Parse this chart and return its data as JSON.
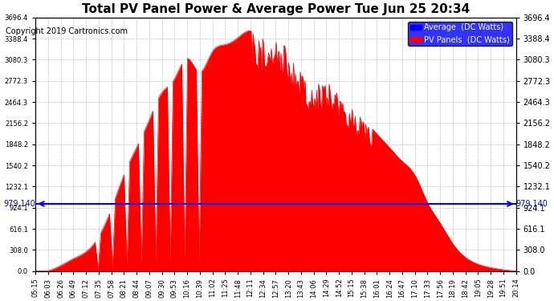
{
  "title": "Total PV Panel Power & Average Power Tue Jun 25 20:34",
  "copyright": "Copyright 2019 Cartronics.com",
  "avg_line_y": 979.14,
  "avg_line_label": "979.140",
  "y_min": 0.0,
  "y_max": 3696.4,
  "y_ticks": [
    0.0,
    308.0,
    616.1,
    924.1,
    1232.1,
    1540.2,
    1848.2,
    2156.2,
    2464.3,
    2772.3,
    3080.3,
    3388.4,
    3696.4
  ],
  "fill_color": "#FF0000",
  "line_color": "#FF0000",
  "avg_color": "#0000FF",
  "background_color": "#FFFFFF",
  "grid_color": "#AAAAAA",
  "legend_avg_label": "Average  (DC Watts)",
  "legend_pv_label": "PV Panels  (DC Watts)",
  "x_labels": [
    "05:15",
    "06:03",
    "06:26",
    "06:49",
    "07:12",
    "07:35",
    "07:58",
    "08:21",
    "08:44",
    "09:07",
    "09:30",
    "09:53",
    "10:16",
    "10:39",
    "11:02",
    "11:25",
    "11:48",
    "12:11",
    "12:34",
    "12:57",
    "13:20",
    "13:43",
    "14:06",
    "14:29",
    "14:52",
    "15:15",
    "15:38",
    "16:01",
    "16:24",
    "16:47",
    "17:10",
    "17:33",
    "17:56",
    "18:19",
    "18:42",
    "19:05",
    "19:28",
    "19:51",
    "20:14"
  ],
  "pv_values": [
    0,
    5,
    80,
    180,
    280,
    500,
    900,
    1400,
    1800,
    2200,
    2600,
    2800,
    3100,
    2900,
    3200,
    3300,
    3400,
    3500,
    3400,
    3450,
    3200,
    2900,
    2700,
    2800,
    2600,
    2400,
    2200,
    2000,
    1800,
    1600,
    1400,
    1000,
    700,
    400,
    200,
    100,
    50,
    20,
    0
  ]
}
